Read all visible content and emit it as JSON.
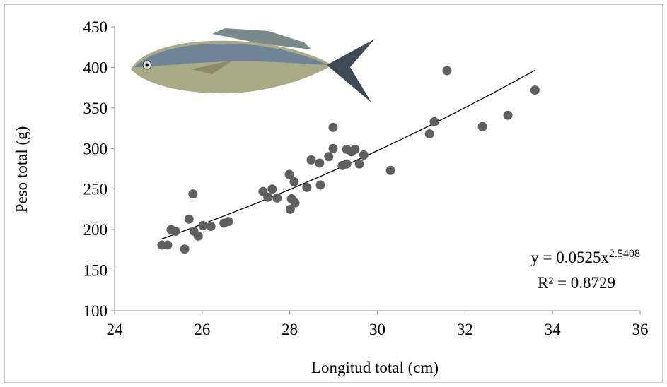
{
  "chart_data": {
    "type": "scatter",
    "x_label": "Longitud total (cm)",
    "y_label": "Peso total (g)",
    "color": "#5f5f5f",
    "xlim": [
      24,
      36
    ],
    "xticks": [
      24,
      26,
      28,
      30,
      32,
      34,
      36
    ],
    "ylim": [
      100,
      450
    ],
    "yticks": [
      100,
      150,
      200,
      250,
      300,
      350,
      400,
      450
    ],
    "grid": false,
    "x": [
      25.08,
      25.21,
      25.29,
      25.39,
      25.6,
      25.7,
      25.79,
      25.81,
      25.91,
      26.02,
      26.2,
      26.5,
      26.6,
      27.39,
      27.5,
      27.6,
      27.71,
      27.99,
      28.01,
      28.04,
      28.1,
      28.12,
      28.39,
      28.49,
      28.68,
      28.7,
      28.89,
      28.99,
      28.99,
      29.2,
      29.3,
      29.3,
      29.41,
      29.49,
      29.59,
      29.69,
      30.3,
      31.19,
      31.3,
      31.59,
      32.4,
      32.98,
      33.6
    ],
    "values": [
      181,
      181,
      200,
      198,
      176,
      213,
      244,
      198,
      192,
      205,
      204,
      208,
      210,
      247,
      240,
      250,
      239,
      268,
      225,
      238,
      259,
      233,
      252,
      286,
      282,
      255,
      290,
      326,
      300,
      279,
      281,
      299,
      296,
      299,
      281,
      292,
      273,
      318,
      333,
      396,
      327,
      341,
      372
    ],
    "trendline": {
      "a": 0.0525,
      "b": 2.5408,
      "equation": "y = 0.0525x",
      "exponent": "2.5408",
      "r2": "R² = 0.8729",
      "color": "#000000"
    }
  }
}
